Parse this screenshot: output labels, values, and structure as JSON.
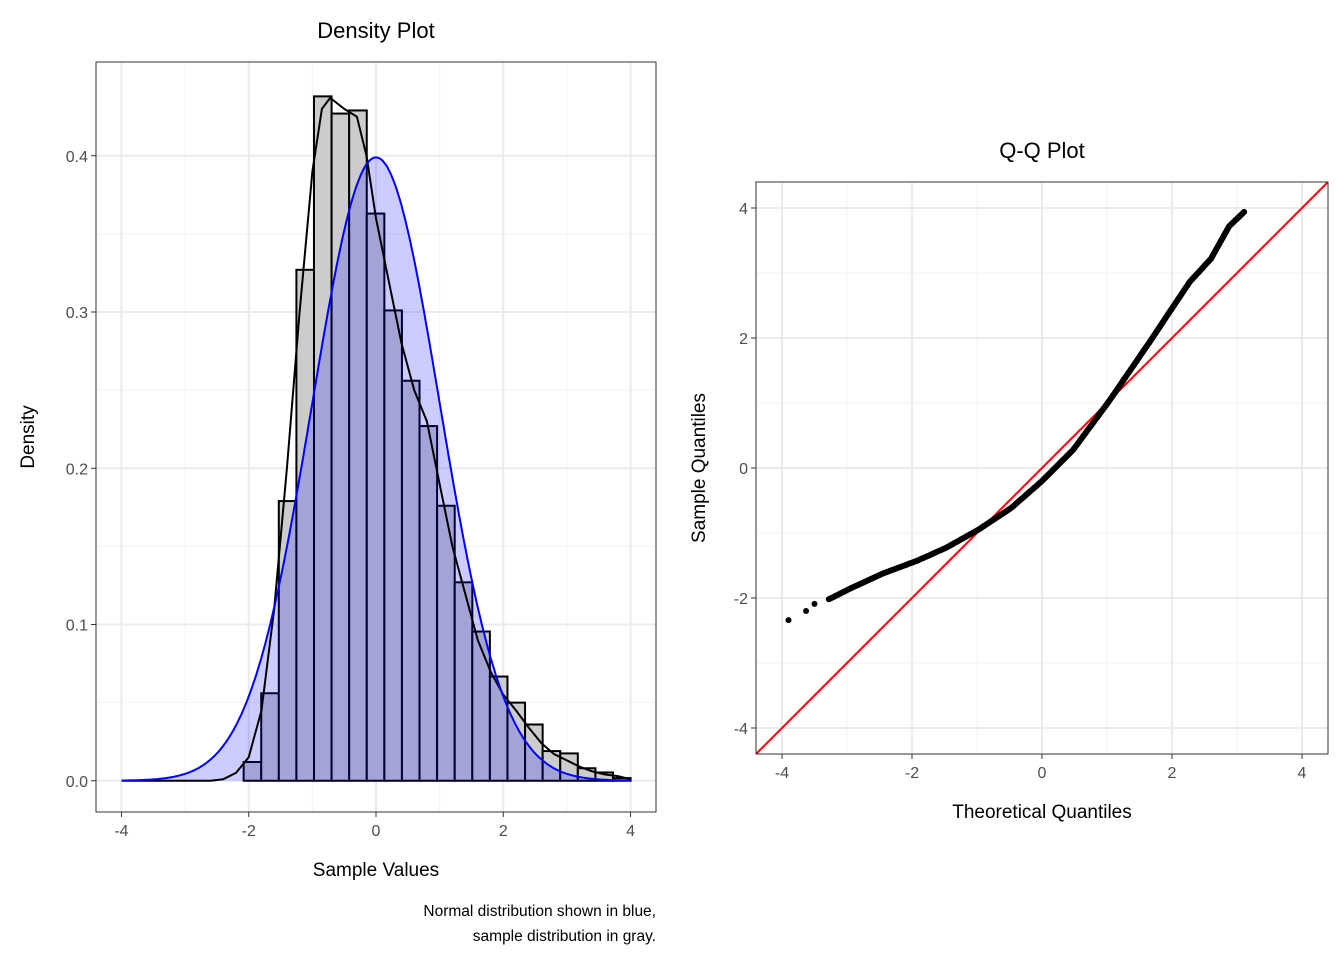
{
  "chart_data": [
    {
      "type": "histogram+density",
      "title": "Density Plot",
      "xlabel": "Sample Values",
      "ylabel": "Density",
      "caption": [
        "Normal distribution shown in blue,",
        "sample distribution in gray."
      ],
      "xlim": [
        -4.4,
        4.4
      ],
      "ylim": [
        -0.02,
        0.46
      ],
      "xticks": [
        -4,
        -2,
        0,
        2,
        4
      ],
      "yticks": [
        0.0,
        0.1,
        0.2,
        0.3,
        0.4
      ],
      "ytick_labels": [
        "0.0",
        "0.1",
        "0.2",
        "0.3",
        "0.4"
      ],
      "grid": true,
      "histogram": {
        "fill": "#cccccc",
        "outline": "#000000",
        "bin_start": -2.08,
        "bin_width": 0.2764,
        "densities": [
          0.012,
          0.056,
          0.179,
          0.327,
          0.438,
          0.427,
          0.429,
          0.363,
          0.301,
          0.256,
          0.227,
          0.176,
          0.127,
          0.0955,
          0.0667,
          0.05,
          0.036,
          0.019,
          0.0175,
          0.008,
          0.0053,
          0.0017
        ]
      },
      "sample_density": {
        "color": "#000000",
        "x": [
          -4,
          -2.6,
          -2.4,
          -2.2,
          -2.0,
          -1.8,
          -1.6,
          -1.4,
          -1.2,
          -1.0,
          -0.85,
          -0.72,
          -0.5,
          -0.3,
          -0.15,
          0,
          0.2,
          0.4,
          0.6,
          0.8,
          1.0,
          1.2,
          1.4,
          1.6,
          1.8,
          2.0,
          2.2,
          2.4,
          2.6,
          2.8,
          3.0,
          3.2,
          3.4,
          3.6,
          3.8,
          4.0
        ],
        "y": [
          0,
          0,
          0.001,
          0.005,
          0.015,
          0.045,
          0.11,
          0.2,
          0.3,
          0.39,
          0.43,
          0.437,
          0.43,
          0.425,
          0.4,
          0.36,
          0.32,
          0.28,
          0.25,
          0.23,
          0.19,
          0.15,
          0.12,
          0.09,
          0.07,
          0.055,
          0.045,
          0.034,
          0.024,
          0.017,
          0.013,
          0.009,
          0.006,
          0.004,
          0.003,
          0.001
        ]
      },
      "normal_density": {
        "mean": 0,
        "sd": 1,
        "line_color": "#0000ff",
        "fill_color": "#0000ff",
        "fill_alpha": 0.2,
        "x_range": [
          -4,
          4
        ]
      }
    },
    {
      "type": "scatter",
      "title": "Q-Q Plot",
      "xlabel": "Theoretical Quantiles",
      "ylabel": "Sample Quantiles",
      "xlim": [
        -4.4,
        4.4
      ],
      "ylim": [
        -4.4,
        4.4
      ],
      "xticks": [
        -4,
        -2,
        0,
        2,
        4
      ],
      "yticks": [
        -4,
        -2,
        0,
        2,
        4
      ],
      "grid": true,
      "point_color": "#000000",
      "reference_line": {
        "slope": 1,
        "intercept": 0,
        "color": "#ff0000"
      },
      "points": [
        [
          -3.9,
          -2.34
        ],
        [
          -3.63,
          -2.2
        ],
        [
          -3.5,
          -2.09
        ],
        [
          -3.28,
          -2.02
        ],
        [
          -2.94,
          -1.85
        ],
        [
          -2.44,
          -1.62
        ],
        [
          -1.93,
          -1.43
        ],
        [
          -1.48,
          -1.23
        ],
        [
          -0.98,
          -0.95
        ],
        [
          -0.48,
          -0.62
        ],
        [
          0.0,
          -0.2
        ],
        [
          0.48,
          0.28
        ],
        [
          1.04,
          1.04
        ],
        [
          1.65,
          1.93
        ],
        [
          2.27,
          2.86
        ],
        [
          2.6,
          3.22
        ],
        [
          2.88,
          3.72
        ],
        [
          3.11,
          3.94
        ]
      ]
    }
  ]
}
